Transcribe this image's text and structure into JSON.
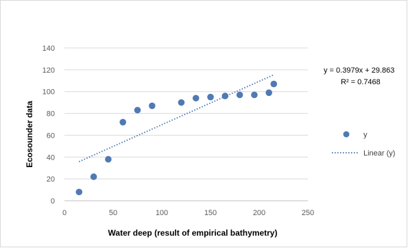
{
  "chart_data": {
    "type": "scatter",
    "xlabel": "Water deep (result of empirical bathymetry)",
    "ylabel": "Ecosounder data",
    "xlim": [
      0,
      250
    ],
    "ylim": [
      0,
      140
    ],
    "x_ticks": [
      0,
      50,
      100,
      150,
      200,
      250
    ],
    "y_ticks": [
      0,
      20,
      40,
      60,
      80,
      100,
      120,
      140
    ],
    "grid": "horizontal",
    "legend_position": "right",
    "colors": {
      "points": "#4f7ab3",
      "trendline": "#4f7ab3",
      "grid": "#d9d9d9"
    },
    "series": [
      {
        "name": "y",
        "x": [
          15,
          30,
          45,
          60,
          75,
          90,
          120,
          135,
          150,
          165,
          180,
          195,
          210,
          215
        ],
        "y": [
          8,
          22,
          38,
          72,
          83,
          87,
          90,
          94,
          95,
          96,
          97,
          97,
          99,
          107
        ]
      }
    ],
    "trendline": {
      "name": "Linear (y)",
      "slope": 0.3979,
      "intercept": 29.863,
      "x_range": [
        15,
        215
      ],
      "equation": "y = 0.3979x + 29.863",
      "r_squared": "R² = 0.7468"
    }
  }
}
